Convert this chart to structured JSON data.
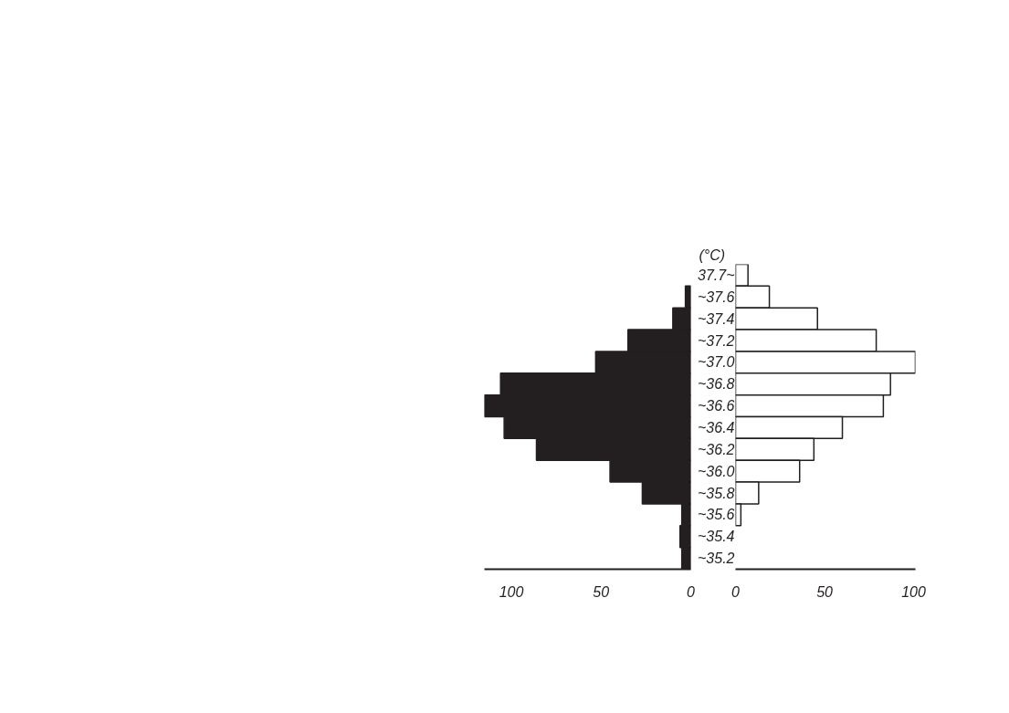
{
  "chart_data": [
    {
      "type": "bar",
      "orientation": "horizontal",
      "categories": [
        "37.7~",
        "~37.6",
        "~37.4",
        "~37.2",
        "~37.0",
        "~36.8",
        "~36.6",
        "~36.4",
        "~36.2",
        "~36.0",
        "~35.8",
        "~35.6",
        "~35.4",
        "~35.2"
      ],
      "values": [
        0,
        3,
        10,
        35,
        53,
        106,
        115,
        104,
        86,
        45,
        27,
        5,
        6,
        5
      ],
      "color": "#231f20",
      "xlim": [
        115,
        0
      ],
      "xticks": [
        100,
        50,
        0
      ],
      "tick_labels": "x"
    },
    {
      "type": "bar",
      "orientation": "horizontal",
      "ylabel": "(°C)",
      "categories": [
        "37.7~",
        "~37.6",
        "~37.4",
        "~37.2",
        "~37.0",
        "~36.8",
        "~36.6",
        "~36.4",
        "~36.2",
        "~36.0",
        "~35.8",
        "~35.6",
        "~35.4",
        "~35.2"
      ],
      "values": [
        7,
        19,
        46,
        79,
        101,
        87,
        83,
        60,
        44,
        36,
        13,
        3,
        0,
        0
      ],
      "color": "#ffffff",
      "xlim": [
        0,
        101
      ],
      "xticks": [
        0,
        50,
        100
      ]
    }
  ]
}
